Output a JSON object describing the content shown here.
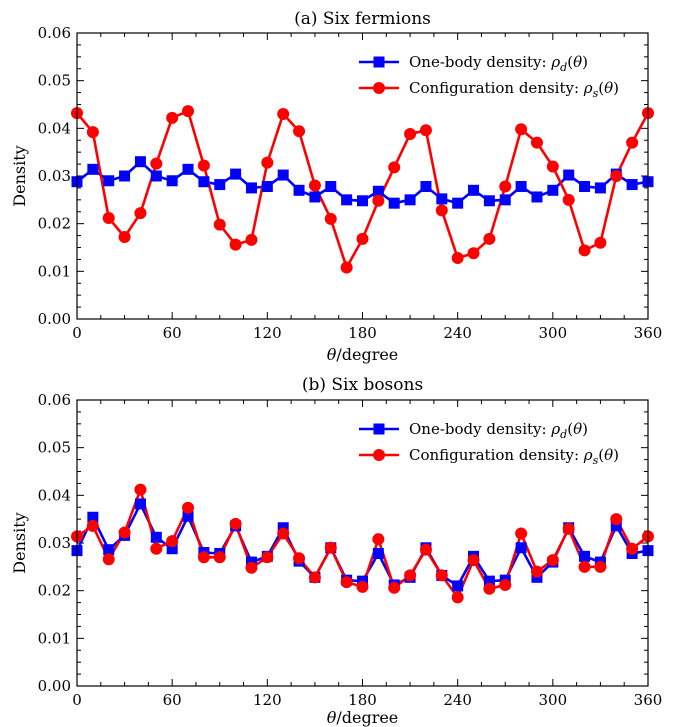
{
  "colors": {
    "onebody": "#0000ff",
    "configuration": "#ff0000",
    "axis": "#000000"
  },
  "chart_data": [
    {
      "type": "line",
      "title": "(a) Six fermions",
      "xlabel": "θ/degree",
      "ylabel": "Density",
      "xlim": [
        0,
        360
      ],
      "ylim": [
        0,
        0.06
      ],
      "xticks": [
        0,
        60,
        120,
        180,
        240,
        300,
        360
      ],
      "xtick_labels": [
        "0",
        "60",
        "120",
        "180",
        "240",
        "300",
        "360"
      ],
      "yticks": [
        0,
        0.01,
        0.02,
        0.03,
        0.04,
        0.05,
        0.06
      ],
      "ytick_labels": [
        "0.00",
        "0.01",
        "0.02",
        "0.03",
        "0.04",
        "0.05",
        "0.06"
      ],
      "grid": false,
      "legend_position": "top-right",
      "x": [
        0,
        10,
        20,
        30,
        40,
        50,
        60,
        70,
        80,
        90,
        100,
        110,
        120,
        130,
        140,
        150,
        160,
        170,
        180,
        190,
        200,
        210,
        220,
        230,
        240,
        250,
        260,
        270,
        280,
        290,
        300,
        310,
        320,
        330,
        340,
        350,
        360
      ],
      "series": [
        {
          "name": "One-body density: ρd(θ)",
          "legend_label": "One-body density: ρ",
          "legend_sub": "d",
          "legend_tail": "(θ)",
          "color": "#0000ff",
          "marker": "square",
          "values": [
            0.0288,
            0.0314,
            0.029,
            0.03,
            0.033,
            0.03,
            0.029,
            0.0314,
            0.0288,
            0.0282,
            0.0304,
            0.0275,
            0.0278,
            0.0302,
            0.027,
            0.0256,
            0.0278,
            0.025,
            0.0248,
            0.0268,
            0.0243,
            0.025,
            0.0278,
            0.0252,
            0.0243,
            0.027,
            0.0248,
            0.025,
            0.0278,
            0.0256,
            0.027,
            0.0302,
            0.0278,
            0.0275,
            0.0304,
            0.0282,
            0.0288
          ]
        },
        {
          "name": "Configuration density: ρs(θ)",
          "legend_label": "Configuration density: ρ",
          "legend_sub": "s",
          "legend_tail": "(θ)",
          "color": "#ff0000",
          "marker": "circle",
          "values": [
            0.0432,
            0.0392,
            0.0212,
            0.0172,
            0.0222,
            0.0326,
            0.0422,
            0.0436,
            0.0322,
            0.0198,
            0.0156,
            0.0166,
            0.0328,
            0.043,
            0.0394,
            0.028,
            0.021,
            0.0108,
            0.0168,
            0.0248,
            0.0318,
            0.0388,
            0.0396,
            0.0228,
            0.0128,
            0.0138,
            0.0168,
            0.0278,
            0.0398,
            0.037,
            0.032,
            0.025,
            0.0144,
            0.016,
            0.03,
            0.037,
            0.0432
          ]
        }
      ]
    },
    {
      "type": "line",
      "title": "(b) Six bosons",
      "xlabel": "θ/degree",
      "ylabel": "Density",
      "xlim": [
        0,
        360
      ],
      "ylim": [
        0,
        0.06
      ],
      "xticks": [
        0,
        60,
        120,
        180,
        240,
        300,
        360
      ],
      "xtick_labels": [
        "0",
        "60",
        "120",
        "180",
        "240",
        "300",
        "360"
      ],
      "yticks": [
        0,
        0.01,
        0.02,
        0.03,
        0.04,
        0.05,
        0.06
      ],
      "ytick_labels": [
        "0.00",
        "0.01",
        "0.02",
        "0.03",
        "0.04",
        "0.05",
        "0.06"
      ],
      "grid": false,
      "legend_position": "top-right",
      "x": [
        0,
        10,
        20,
        30,
        40,
        50,
        60,
        70,
        80,
        90,
        100,
        110,
        120,
        130,
        140,
        150,
        160,
        170,
        180,
        190,
        200,
        210,
        220,
        230,
        240,
        250,
        260,
        270,
        280,
        290,
        300,
        310,
        320,
        330,
        340,
        350,
        360
      ],
      "series": [
        {
          "name": "One-body density: ρd(θ)",
          "legend_label": "One-body density: ρ",
          "legend_sub": "d",
          "legend_tail": "(θ)",
          "color": "#0000ff",
          "marker": "square",
          "values": [
            0.0284,
            0.0354,
            0.0286,
            0.0316,
            0.0382,
            0.0312,
            0.0288,
            0.0356,
            0.028,
            0.0278,
            0.0336,
            0.026,
            0.0272,
            0.0332,
            0.0262,
            0.0228,
            0.029,
            0.0222,
            0.022,
            0.0278,
            0.0212,
            0.0228,
            0.029,
            0.0232,
            0.021,
            0.0272,
            0.022,
            0.0222,
            0.029,
            0.0228,
            0.026,
            0.0332,
            0.0272,
            0.026,
            0.0336,
            0.0278,
            0.0284
          ]
        },
        {
          "name": "Configuration density: ρs(θ)",
          "legend_label": "Configuration density: ρ",
          "legend_sub": "s",
          "legend_tail": "(θ)",
          "color": "#ff0000",
          "marker": "circle",
          "values": [
            0.0314,
            0.0336,
            0.0266,
            0.0322,
            0.0412,
            0.0288,
            0.0304,
            0.0374,
            0.027,
            0.027,
            0.034,
            0.0248,
            0.027,
            0.032,
            0.0268,
            0.0228,
            0.029,
            0.0218,
            0.0208,
            0.0308,
            0.0206,
            0.0232,
            0.0286,
            0.0232,
            0.0186,
            0.0264,
            0.0204,
            0.0212,
            0.032,
            0.024,
            0.0264,
            0.033,
            0.025,
            0.025,
            0.035,
            0.0288,
            0.0314
          ]
        }
      ]
    }
  ]
}
